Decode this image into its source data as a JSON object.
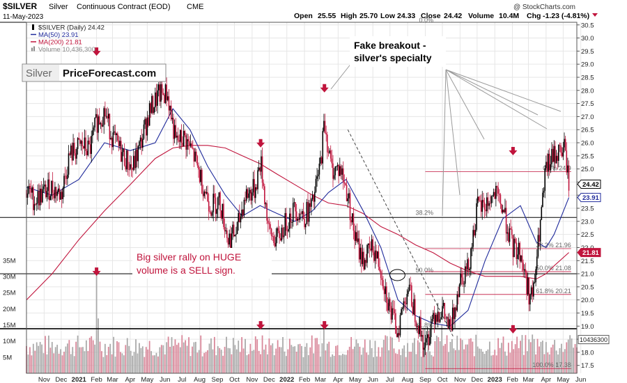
{
  "header": {
    "symbol": "$SILVER",
    "name": "Silver",
    "contract": "Continuous Contract (EOD)",
    "exchange": "CME",
    "date": "11-May-2023",
    "open_label": "Open",
    "open": "25.55",
    "high_label": "High",
    "high": "25.70",
    "low_label": "Low",
    "low": "24.33",
    "close_label": "Close",
    "close": "24.42",
    "volume_label": "Volume",
    "volume": "10.4M",
    "chg_label": "Chg",
    "chg": "-1.23 (-4.81%)",
    "watermark": "@ StockCharts.com"
  },
  "legend": [
    {
      "text": "$SILVER (Daily) 24.42",
      "color": "#000000",
      "icon": "candle-icon"
    },
    {
      "text": "MA(50) 23.91",
      "color": "#1f2a9b",
      "icon": "line-icon"
    },
    {
      "text": "MA(200) 21.81",
      "color": "#c0143c",
      "icon": "line-icon"
    },
    {
      "text": "Volume 10,436,300",
      "color": "#888888",
      "icon": "bar-icon"
    }
  ],
  "logo": {
    "left": "Silver",
    "right": "PriceForecast.com"
  },
  "annotations": {
    "fake_breakout_line1": "Fake breakout -",
    "fake_breakout_line2": "silver's specialty",
    "rally_line1": "Big silver rally on HUGE",
    "rally_line2": "volume is a SELL sign."
  },
  "fib_left": [
    {
      "label": "0.0%",
      "price": 30.55
    },
    {
      "label": "38.2%",
      "price": 23.2
    },
    {
      "label": "50.0%",
      "price": 21.0
    },
    {
      "label": "61.8%",
      "price": 18.9
    }
  ],
  "fib_right": [
    {
      "label": "0.0% 24.9",
      "price": 24.9
    },
    {
      "label": "38.2% 21.96",
      "price": 21.96
    },
    {
      "label": "50.0% 21.08",
      "price": 21.08
    },
    {
      "label": "61.8% 20.21",
      "price": 20.21
    },
    {
      "label": "100.0% 17.38",
      "price": 17.38
    }
  ],
  "price_badges": [
    {
      "text": "24.42",
      "price": 24.42,
      "style": "close"
    },
    {
      "text": "23.91",
      "price": 23.91,
      "style": "ma50"
    },
    {
      "text": "21.81",
      "price": 21.81,
      "style": "ma200"
    }
  ],
  "volume_badge": "10436300",
  "horizontal_lines": [
    30.6,
    23.15,
    21.0,
    18.9
  ],
  "down_arrows": [
    {
      "date": "2021-02-01",
      "price": 29.4
    },
    {
      "date": "2021-11-16",
      "price": 25.9
    },
    {
      "date": "2022-03-08",
      "price": 28.0
    },
    {
      "date": "2023-02-02",
      "price": 25.6
    },
    {
      "date": "2021-02-01",
      "price": 21.0
    },
    {
      "date": "2021-11-16",
      "price": 18.95
    },
    {
      "date": "2022-03-08",
      "price": 18.95
    },
    {
      "date": "2023-02-02",
      "price": 18.8
    }
  ],
  "chart_data": {
    "type": "line",
    "title": "$SILVER Silver Continuous Contract (EOD) CME",
    "x_range": [
      "2020-10-01",
      "2023-05-25"
    ],
    "x_ticks": [
      "Nov",
      "Dec",
      "2021",
      "Feb",
      "Mar",
      "Apr",
      "May",
      "Jun",
      "Jul",
      "Aug",
      "Sep",
      "Oct",
      "Nov",
      "Dec",
      "2022",
      "Feb",
      "Mar",
      "Apr",
      "May",
      "Jun",
      "Jul",
      "Aug",
      "Sep",
      "Oct",
      "Nov",
      "Dec",
      "2023",
      "Feb",
      "Mar",
      "Apr",
      "May",
      "Jun"
    ],
    "x_tick_dates": [
      "2020-11-01",
      "2020-12-01",
      "2021-01-01",
      "2021-02-01",
      "2021-03-01",
      "2021-04-01",
      "2021-05-01",
      "2021-06-01",
      "2021-07-01",
      "2021-08-01",
      "2021-09-01",
      "2021-10-01",
      "2021-11-01",
      "2021-12-01",
      "2022-01-01",
      "2022-02-01",
      "2022-03-01",
      "2022-04-01",
      "2022-05-01",
      "2022-06-01",
      "2022-07-01",
      "2022-08-01",
      "2022-09-01",
      "2022-10-01",
      "2022-11-01",
      "2022-12-01",
      "2023-01-01",
      "2023-02-01",
      "2023-03-01",
      "2023-04-01",
      "2023-05-01",
      "2023-06-01"
    ],
    "price_axis": {
      "ylim": [
        17.2,
        30.6
      ],
      "ticks": [
        "17.5",
        "18.0",
        "18.5",
        "19.0",
        "19.5",
        "20.0",
        "20.5",
        "21.0",
        "21.5",
        "22.0",
        "22.5",
        "23.0",
        "23.5",
        "24.0",
        "24.5",
        "25.0",
        "25.5",
        "26.0",
        "26.5",
        "27.0",
        "27.5",
        "28.0",
        "28.5",
        "29.0",
        "29.5",
        "30.0",
        "30.5"
      ]
    },
    "volume_axis": {
      "ylim": [
        0,
        38
      ],
      "ticks": [
        "5M",
        "10M",
        "15M",
        "20M",
        "25M",
        "30M",
        "35M"
      ],
      "tick_values": [
        5,
        10,
        15,
        20,
        25,
        30,
        35
      ]
    },
    "series": [
      {
        "name": "$SILVER (Daily) 24.42",
        "color": "#000000",
        "style": "candlestick",
        "x": [
          "2020-10-01",
          "2020-10-15",
          "2020-11-01",
          "2020-11-15",
          "2020-12-01",
          "2020-12-15",
          "2021-01-05",
          "2021-01-20",
          "2021-02-01",
          "2021-02-15",
          "2021-03-01",
          "2021-03-20",
          "2021-04-05",
          "2021-04-20",
          "2021-05-05",
          "2021-05-20",
          "2021-06-05",
          "2021-06-20",
          "2021-07-05",
          "2021-07-20",
          "2021-08-05",
          "2021-08-20",
          "2021-09-05",
          "2021-09-20",
          "2021-10-05",
          "2021-10-20",
          "2021-11-05",
          "2021-11-16",
          "2021-12-01",
          "2021-12-15",
          "2022-01-01",
          "2022-01-15",
          "2022-02-01",
          "2022-02-15",
          "2022-03-01",
          "2022-03-08",
          "2022-03-20",
          "2022-04-05",
          "2022-04-18",
          "2022-05-01",
          "2022-05-15",
          "2022-06-01",
          "2022-06-15",
          "2022-07-01",
          "2022-07-14",
          "2022-08-01",
          "2022-08-15",
          "2022-09-01",
          "2022-09-15",
          "2022-10-01",
          "2022-10-15",
          "2022-11-01",
          "2022-11-15",
          "2022-12-01",
          "2022-12-15",
          "2023-01-01",
          "2023-01-15",
          "2023-02-01",
          "2023-02-15",
          "2023-03-01",
          "2023-03-09",
          "2023-03-20",
          "2023-04-01",
          "2023-04-15",
          "2023-05-04",
          "2023-05-11"
        ],
        "values": [
          24.2,
          23.8,
          24.1,
          24.3,
          24.0,
          25.5,
          25.9,
          25.7,
          26.8,
          27.2,
          26.2,
          25.5,
          25.0,
          26.0,
          27.2,
          27.8,
          27.9,
          26.0,
          26.2,
          25.6,
          24.5,
          23.6,
          23.8,
          22.3,
          22.6,
          24.0,
          24.2,
          25.3,
          22.5,
          22.3,
          23.0,
          23.5,
          23.2,
          23.6,
          25.2,
          26.8,
          25.0,
          25.0,
          24.0,
          22.3,
          21.5,
          22.0,
          21.2,
          19.6,
          18.8,
          20.5,
          19.5,
          18.1,
          19.5,
          19.6,
          18.8,
          20.9,
          21.2,
          23.5,
          23.6,
          24.0,
          23.5,
          22.0,
          21.8,
          20.3,
          20.1,
          22.5,
          25.0,
          25.5,
          25.8,
          24.42
        ]
      },
      {
        "name": "MA(50) 23.91",
        "color": "#1f2a9b",
        "style": "line",
        "x": [
          "2020-10-01",
          "2020-11-15",
          "2021-01-01",
          "2021-02-15",
          "2021-04-01",
          "2021-05-15",
          "2021-06-15",
          "2021-07-15",
          "2021-08-15",
          "2021-09-15",
          "2021-10-15",
          "2021-11-15",
          "2021-12-15",
          "2022-01-15",
          "2022-02-15",
          "2022-03-15",
          "2022-04-15",
          "2022-05-15",
          "2022-06-15",
          "2022-07-15",
          "2022-08-15",
          "2022-09-15",
          "2022-10-15",
          "2022-11-15",
          "2022-12-15",
          "2023-01-15",
          "2023-02-15",
          "2023-03-15",
          "2023-04-01",
          "2023-04-15",
          "2023-05-11"
        ],
        "values": [
          24.3,
          24.0,
          24.6,
          26.0,
          25.7,
          26.0,
          27.3,
          26.5,
          25.1,
          24.0,
          23.2,
          23.6,
          23.3,
          23.0,
          23.4,
          24.1,
          24.6,
          23.4,
          22.0,
          20.0,
          19.4,
          19.1,
          19.0,
          19.6,
          21.5,
          23.1,
          23.6,
          22.2,
          22.0,
          22.5,
          23.91
        ]
      },
      {
        "name": "MA(200) 21.81",
        "color": "#c0143c",
        "style": "line",
        "x": [
          "2020-10-01",
          "2020-11-15",
          "2021-01-01",
          "2021-02-15",
          "2021-04-01",
          "2021-05-15",
          "2021-06-15",
          "2021-07-15",
          "2021-08-15",
          "2021-09-15",
          "2021-10-15",
          "2021-11-15",
          "2021-12-15",
          "2022-01-15",
          "2022-02-15",
          "2022-03-15",
          "2022-04-15",
          "2022-05-15",
          "2022-06-15",
          "2022-07-15",
          "2022-08-15",
          "2022-09-15",
          "2022-10-15",
          "2022-11-15",
          "2022-12-15",
          "2023-01-15",
          "2023-02-15",
          "2023-03-15",
          "2023-04-01",
          "2023-04-15",
          "2023-05-11"
        ],
        "values": [
          20.0,
          21.0,
          22.3,
          23.4,
          24.4,
          25.4,
          25.8,
          25.9,
          25.9,
          25.8,
          25.5,
          25.2,
          24.8,
          24.4,
          24.0,
          23.7,
          23.6,
          23.3,
          22.8,
          22.5,
          22.1,
          21.8,
          21.4,
          21.1,
          20.9,
          20.9,
          20.9,
          20.8,
          21.0,
          21.3,
          21.81
        ]
      },
      {
        "name": "Volume 10,436,300",
        "color": "#9a9a9a",
        "style": "volume",
        "x": [
          "2021-02-01",
          "2021-02-03",
          "2022-03-08",
          "2022-07-14",
          "2022-09-01",
          "2022-10-01",
          "2023-03-09",
          "2023-05-11"
        ],
        "values": [
          32.0,
          17.0,
          14.0,
          6.0,
          14.0,
          15.0,
          12.0,
          10.44
        ]
      }
    ]
  }
}
